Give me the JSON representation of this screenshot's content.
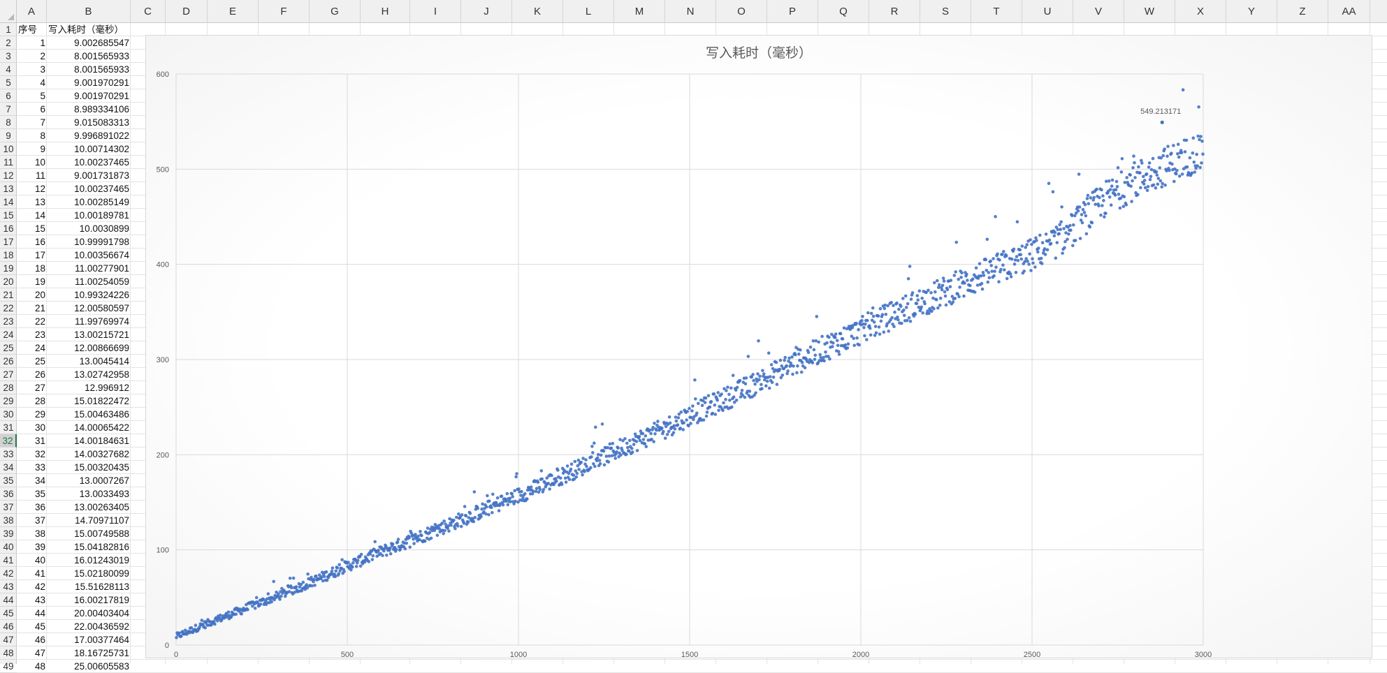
{
  "app": {
    "name": "spreadsheet"
  },
  "column_headers": [
    "A",
    "B",
    "C",
    "D",
    "E",
    "F",
    "G",
    "H",
    "I",
    "J",
    "K",
    "L",
    "M",
    "N",
    "O",
    "P",
    "Q",
    "R",
    "S",
    "T",
    "U",
    "V",
    "W",
    "X",
    "Y",
    "Z",
    "AA"
  ],
  "row_headers": [
    "1",
    "2",
    "3",
    "4",
    "5",
    "6",
    "7",
    "8",
    "9",
    "10",
    "11",
    "12",
    "13",
    "14",
    "15",
    "16",
    "17",
    "18",
    "19",
    "20",
    "21",
    "22",
    "23",
    "24",
    "25",
    "26",
    "27",
    "28",
    "29",
    "30",
    "31",
    "32",
    "33",
    "34",
    "35",
    "36",
    "37",
    "38",
    "39",
    "40",
    "41",
    "42",
    "43",
    "44",
    "45",
    "46",
    "47",
    "48",
    "49"
  ],
  "selected_row": "32",
  "table": {
    "headers": [
      "序号",
      "写入耗时（毫秒）"
    ],
    "rows": [
      [
        "1",
        "9.002685547"
      ],
      [
        "2",
        "8.001565933"
      ],
      [
        "3",
        "8.001565933"
      ],
      [
        "4",
        "9.001970291"
      ],
      [
        "5",
        "9.001970291"
      ],
      [
        "6",
        "8.989334106"
      ],
      [
        "7",
        "9.015083313"
      ],
      [
        "8",
        "9.996891022"
      ],
      [
        "9",
        "10.00714302"
      ],
      [
        "10",
        "10.00237465"
      ],
      [
        "11",
        "9.001731873"
      ],
      [
        "12",
        "10.00237465"
      ],
      [
        "13",
        "10.00285149"
      ],
      [
        "14",
        "10.00189781"
      ],
      [
        "15",
        "10.0030899"
      ],
      [
        "16",
        "10.99991798"
      ],
      [
        "17",
        "10.00356674"
      ],
      [
        "18",
        "11.00277901"
      ],
      [
        "19",
        "11.00254059"
      ],
      [
        "20",
        "10.99324226"
      ],
      [
        "21",
        "12.00580597"
      ],
      [
        "22",
        "11.99769974"
      ],
      [
        "23",
        "13.00215721"
      ],
      [
        "24",
        "12.00866699"
      ],
      [
        "25",
        "13.0045414"
      ],
      [
        "26",
        "13.02742958"
      ],
      [
        "27",
        "12.996912"
      ],
      [
        "28",
        "15.01822472"
      ],
      [
        "29",
        "15.00463486"
      ],
      [
        "30",
        "14.00065422"
      ],
      [
        "31",
        "14.00184631"
      ],
      [
        "32",
        "14.00327682"
      ],
      [
        "33",
        "15.00320435"
      ],
      [
        "34",
        "13.0007267"
      ],
      [
        "35",
        "13.0033493"
      ],
      [
        "36",
        "13.00263405"
      ],
      [
        "37",
        "14.70971107"
      ],
      [
        "38",
        "15.00749588"
      ],
      [
        "39",
        "15.04182816"
      ],
      [
        "40",
        "16.01243019"
      ],
      [
        "41",
        "15.02180099"
      ],
      [
        "42",
        "15.51628113"
      ],
      [
        "43",
        "16.00217819"
      ],
      [
        "44",
        "20.00403404"
      ],
      [
        "45",
        "22.00436592"
      ],
      [
        "46",
        "17.00377464"
      ],
      [
        "47",
        "18.16725731"
      ],
      [
        "48",
        "25.00605583"
      ]
    ]
  },
  "chart_data": {
    "type": "scatter",
    "title": "写入耗时（毫秒）",
    "xlabel": "",
    "ylabel": "",
    "xlim": [
      0,
      3000
    ],
    "ylim": [
      0,
      600
    ],
    "x_ticks": [
      "0",
      "500",
      "1000",
      "1500",
      "2000",
      "2500",
      "3000"
    ],
    "y_ticks": [
      "0",
      "100",
      "200",
      "300",
      "400",
      "500",
      "600"
    ],
    "grid": true,
    "legend": "none",
    "series_color": "#4472c4",
    "max_label": "549.213171",
    "max_point": {
      "x": 2880,
      "y": 549.213171
    },
    "trend_samples": [
      {
        "x": 0,
        "y": 9
      },
      {
        "x": 100,
        "y": 24
      },
      {
        "x": 200,
        "y": 38
      },
      {
        "x": 300,
        "y": 52
      },
      {
        "x": 400,
        "y": 67
      },
      {
        "x": 500,
        "y": 83
      },
      {
        "x": 600,
        "y": 98
      },
      {
        "x": 700,
        "y": 112
      },
      {
        "x": 800,
        "y": 127
      },
      {
        "x": 900,
        "y": 142
      },
      {
        "x": 1000,
        "y": 157
      },
      {
        "x": 1100,
        "y": 173
      },
      {
        "x": 1200,
        "y": 190
      },
      {
        "x": 1300,
        "y": 207
      },
      {
        "x": 1400,
        "y": 223
      },
      {
        "x": 1500,
        "y": 241
      },
      {
        "x": 1600,
        "y": 258
      },
      {
        "x": 1700,
        "y": 276
      },
      {
        "x": 1800,
        "y": 295
      },
      {
        "x": 1900,
        "y": 313
      },
      {
        "x": 2000,
        "y": 330
      },
      {
        "x": 2100,
        "y": 348
      },
      {
        "x": 2200,
        "y": 364
      },
      {
        "x": 2300,
        "y": 380
      },
      {
        "x": 2400,
        "y": 395
      },
      {
        "x": 2500,
        "y": 410
      },
      {
        "x": 2600,
        "y": 430
      },
      {
        "x": 2700,
        "y": 465
      },
      {
        "x": 2800,
        "y": 488
      },
      {
        "x": 2900,
        "y": 505
      },
      {
        "x": 3000,
        "y": 520
      }
    ]
  }
}
